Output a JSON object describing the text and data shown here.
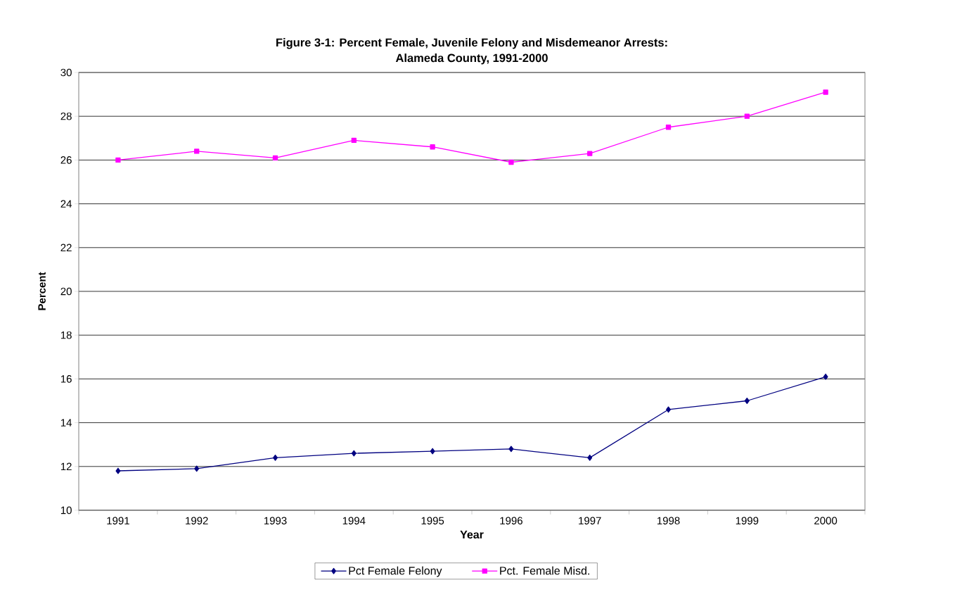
{
  "chart_data": {
    "type": "line",
    "title": "Figure 3-1: Percent Female, Juvenile Felony and Misdemeanor Arrests:",
    "subtitle": "Alameda County, 1991-2000",
    "xlabel": "Year",
    "ylabel": "Percent",
    "categories": [
      "1991",
      "1992",
      "1993",
      "1994",
      "1995",
      "1996",
      "1997",
      "1998",
      "1999",
      "2000"
    ],
    "series": [
      {
        "name": "Pct Female Felony",
        "color": "#000080",
        "marker": "diamond",
        "values": [
          11.8,
          11.9,
          12.4,
          12.6,
          12.7,
          12.8,
          12.4,
          14.6,
          15.0,
          16.1
        ]
      },
      {
        "name": "Pct. Female Misd.",
        "color": "#ff00ff",
        "marker": "square",
        "values": [
          26.0,
          26.4,
          26.1,
          26.9,
          26.6,
          25.9,
          26.3,
          27.5,
          28.0,
          29.1
        ]
      }
    ],
    "ylim": [
      10,
      30
    ],
    "yticks": [
      10,
      12,
      14,
      16,
      18,
      20,
      22,
      24,
      26,
      28,
      30
    ],
    "grid": "y",
    "legend": "bottom",
    "line_style": "solid"
  }
}
